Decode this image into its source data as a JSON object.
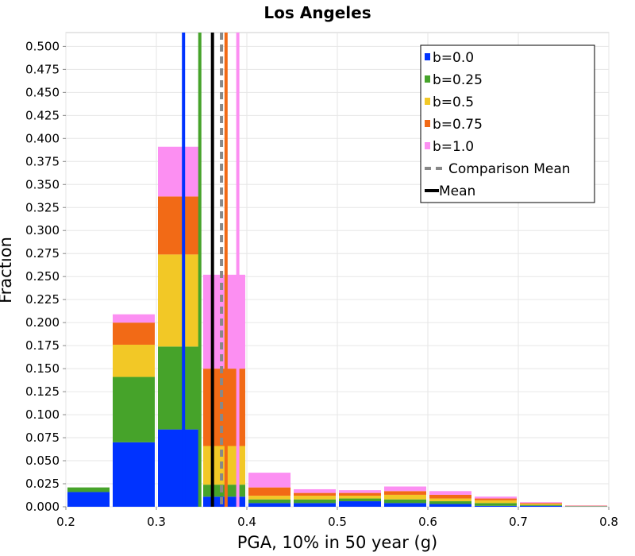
{
  "chart_data": {
    "type": "bar",
    "stacked": true,
    "title": "Los Angeles",
    "xlabel": "PGA, 10% in 50 year (g)",
    "ylabel": "Fraction",
    "xlim": [
      0.2,
      0.8
    ],
    "ylim": [
      0.0,
      0.515
    ],
    "xticks": [
      "0.2",
      "0.3",
      "0.4",
      "0.5",
      "0.6",
      "0.7",
      "0.8"
    ],
    "yticks": [
      "0.000",
      "0.025",
      "0.050",
      "0.075",
      "0.100",
      "0.125",
      "0.150",
      "0.175",
      "0.200",
      "0.225",
      "0.250",
      "0.275",
      "0.300",
      "0.325",
      "0.350",
      "0.375",
      "0.400",
      "0.425",
      "0.450",
      "0.475",
      "0.500"
    ],
    "grid": true,
    "legend_position": "top-right",
    "bins": [
      {
        "x0": 0.2,
        "x1": 0.25
      },
      {
        "x0": 0.25,
        "x1": 0.3
      },
      {
        "x0": 0.3,
        "x1": 0.35
      },
      {
        "x0": 0.35,
        "x1": 0.4
      },
      {
        "x0": 0.4,
        "x1": 0.45
      },
      {
        "x0": 0.45,
        "x1": 0.5
      },
      {
        "x0": 0.5,
        "x1": 0.55
      },
      {
        "x0": 0.55,
        "x1": 0.6
      },
      {
        "x0": 0.6,
        "x1": 0.65
      },
      {
        "x0": 0.65,
        "x1": 0.7
      },
      {
        "x0": 0.7,
        "x1": 0.75
      },
      {
        "x0": 0.75,
        "x1": 0.8
      }
    ],
    "series": [
      {
        "name": "b=0.0",
        "color": "#0033ff",
        "values": [
          0.016,
          0.07,
          0.084,
          0.011,
          0.004,
          0.004,
          0.006,
          0.004,
          0.003,
          0.001,
          0.001,
          0.0003
        ]
      },
      {
        "name": "b=0.25",
        "color": "#46a32a",
        "values": [
          0.005,
          0.071,
          0.09,
          0.013,
          0.004,
          0.004,
          0.003,
          0.004,
          0.003,
          0.003,
          0.001,
          0.0003
        ]
      },
      {
        "name": "b=0.5",
        "color": "#f2c826",
        "values": [
          0.0,
          0.035,
          0.1,
          0.042,
          0.004,
          0.004,
          0.003,
          0.005,
          0.003,
          0.003,
          0.001,
          0.0003
        ]
      },
      {
        "name": "b=0.75",
        "color": "#f26a16",
        "values": [
          0.0,
          0.024,
          0.063,
          0.084,
          0.009,
          0.003,
          0.003,
          0.004,
          0.004,
          0.002,
          0.001,
          0.0003
        ]
      },
      {
        "name": "b=1.0",
        "color": "#fc8ff2",
        "values": [
          0.0,
          0.009,
          0.054,
          0.102,
          0.016,
          0.004,
          0.003,
          0.005,
          0.004,
          0.002,
          0.001,
          0.0003
        ]
      }
    ],
    "vertical_lines": [
      {
        "series": "b=0.0",
        "x": 0.33,
        "color": "#0033ff",
        "style": "solid"
      },
      {
        "series": "b=0.25",
        "x": 0.348,
        "color": "#46a32a",
        "style": "solid"
      },
      {
        "series": "b=0.75",
        "x": 0.377,
        "color": "#f26a16",
        "style": "solid"
      },
      {
        "series": "b=1.0",
        "x": 0.39,
        "color": "#fc8ff2",
        "style": "solid"
      },
      {
        "series": "Comparison Mean",
        "x": 0.372,
        "color": "#888888",
        "style": "dashed"
      },
      {
        "series": "Mean",
        "x": 0.362,
        "color": "#000000",
        "style": "solid"
      }
    ],
    "legend": [
      {
        "label": "b=0.0",
        "color": "#0033ff",
        "kind": "box"
      },
      {
        "label": "b=0.25",
        "color": "#46a32a",
        "kind": "box"
      },
      {
        "label": "b=0.5",
        "color": "#f2c826",
        "kind": "box"
      },
      {
        "label": "b=0.75",
        "color": "#f26a16",
        "kind": "box"
      },
      {
        "label": "b=1.0",
        "color": "#fc8ff2",
        "kind": "box"
      },
      {
        "label": "Comparison Mean",
        "color": "#888888",
        "kind": "dashed-line"
      },
      {
        "label": "Mean",
        "color": "#000000",
        "kind": "line"
      }
    ]
  }
}
